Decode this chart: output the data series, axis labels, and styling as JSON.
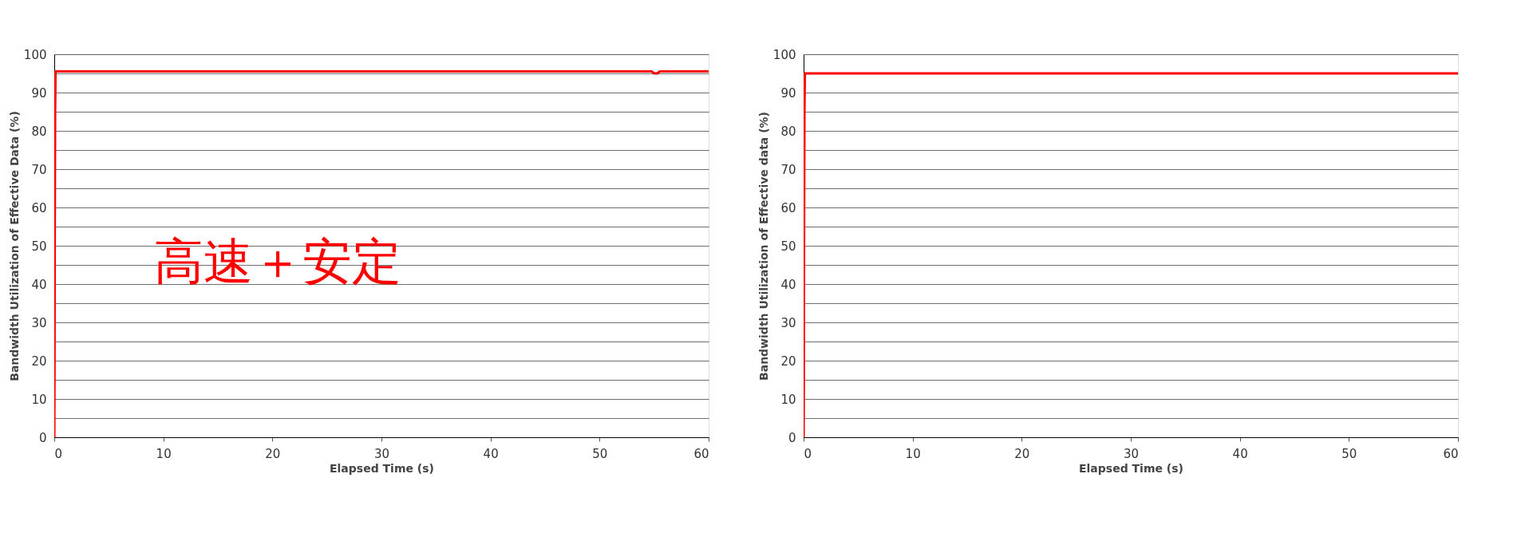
{
  "chart_data": [
    {
      "type": "line",
      "xlabel": "Elapsed Time (s)",
      "ylabel": "Bandwidth Utilization of Effective Data (%)",
      "annotations": [
        "高速＋安定"
      ],
      "series": [
        {
          "color": "#ff0000",
          "x": [
            0,
            0.02,
            0.05,
            0.08,
            0.12,
            0.2,
            54.8,
            55,
            55.3,
            55.5,
            60
          ],
          "values": [
            0,
            15,
            57,
            85,
            95.5,
            95.5,
            95.5,
            95,
            95,
            95.5,
            95.5
          ]
        }
      ],
      "xlim": [
        0,
        60
      ],
      "xticks": [
        0,
        10,
        20,
        30,
        40,
        50,
        60
      ],
      "ylim": [
        0,
        100
      ],
      "yticks": [
        0,
        {
          "value": 5,
          "label": null
        },
        10,
        {
          "value": 15,
          "label": null
        },
        20,
        {
          "value": 25,
          "label": null
        },
        30,
        {
          "value": 35,
          "label": null
        },
        40,
        {
          "value": 45,
          "label": null
        },
        50,
        {
          "value": 55,
          "label": null
        },
        60,
        {
          "value": 65,
          "label": null
        },
        70,
        {
          "value": 75,
          "label": null
        },
        80,
        {
          "value": 85,
          "label": null
        },
        90,
        {
          "value": 95,
          "label": null
        },
        100
      ],
      "grid": "y",
      "marker": "none",
      "line_style": "solid"
    },
    {
      "type": "line",
      "xlabel": "Elapsed Time (s)",
      "ylabel": "Bandwidth Utilization of Effective data (%)",
      "series": [
        {
          "color": "#ff0000",
          "x": [
            0,
            0.02,
            0.05,
            0.08,
            0.12,
            0.2,
            60
          ],
          "values": [
            0,
            15,
            57,
            85,
            95,
            95,
            95
          ]
        }
      ],
      "xlim": [
        0,
        60
      ],
      "xticks": [
        0,
        10,
        20,
        30,
        40,
        50,
        60
      ],
      "ylim": [
        0,
        100
      ],
      "yticks": [
        0,
        {
          "value": 5,
          "label": null
        },
        10,
        {
          "value": 15,
          "label": null
        },
        20,
        {
          "value": 25,
          "label": null
        },
        30,
        {
          "value": 35,
          "label": null
        },
        40,
        {
          "value": 45,
          "label": null
        },
        50,
        {
          "value": 55,
          "label": null
        },
        60,
        {
          "value": 65,
          "label": null
        },
        70,
        {
          "value": 75,
          "label": null
        },
        80,
        {
          "value": 85,
          "label": null
        },
        90,
        {
          "value": 95,
          "label": null
        },
        100
      ],
      "grid": "y",
      "marker": "none",
      "line_style": "solid"
    }
  ]
}
